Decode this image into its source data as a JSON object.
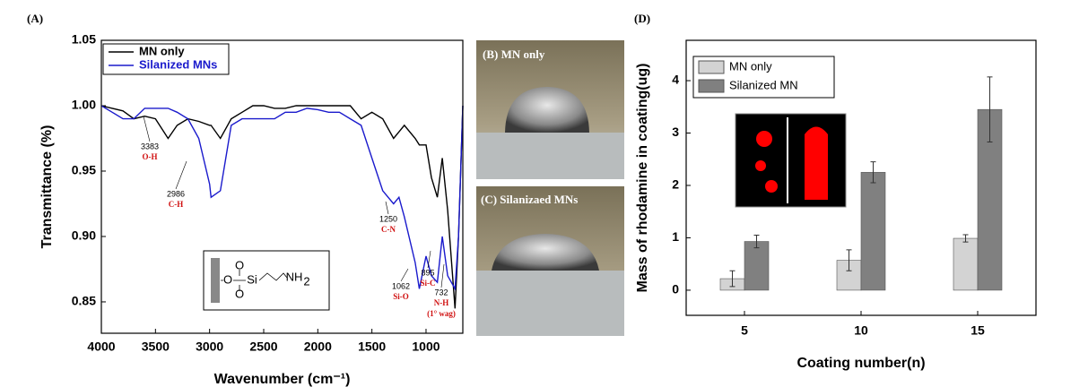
{
  "chart_data": [
    {
      "type": "line",
      "panel": "(A)",
      "xlabel": "Wavenumber (cm⁻¹)",
      "ylabel": "Transmittance (%)",
      "x": [
        4000,
        3900,
        3800,
        3700,
        3600,
        3500,
        3383,
        3300,
        3200,
        3100,
        3000,
        2986,
        2900,
        2800,
        2700,
        2600,
        2500,
        2400,
        2300,
        2200,
        2100,
        2000,
        1900,
        1800,
        1700,
        1600,
        1500,
        1400,
        1300,
        1250,
        1200,
        1100,
        1062,
        1000,
        950,
        895,
        850,
        800,
        732,
        700,
        660
      ],
      "series": [
        {
          "name": "MN only",
          "color": "#000000",
          "values": [
            1.0,
            0.998,
            0.996,
            0.99,
            0.992,
            0.99,
            0.975,
            0.985,
            0.99,
            0.988,
            0.985,
            0.985,
            0.975,
            0.99,
            0.995,
            1.0,
            1.0,
            0.998,
            0.998,
            1.0,
            1.0,
            1.0,
            1.0,
            1.0,
            1.0,
            0.99,
            0.995,
            0.99,
            0.975,
            0.98,
            0.985,
            0.975,
            0.97,
            0.97,
            0.945,
            0.93,
            0.96,
            0.92,
            0.845,
            0.9,
            1.0
          ]
        },
        {
          "name": "Silanized MNs",
          "color": "#1a1acc",
          "values": [
            1.0,
            0.995,
            0.99,
            0.99,
            0.998,
            0.998,
            0.998,
            0.995,
            0.99,
            0.975,
            0.94,
            0.93,
            0.935,
            0.985,
            0.99,
            0.99,
            0.99,
            0.99,
            0.995,
            0.995,
            0.998,
            0.997,
            0.995,
            0.995,
            0.99,
            0.985,
            0.96,
            0.935,
            0.925,
            0.93,
            0.915,
            0.88,
            0.86,
            0.885,
            0.87,
            0.865,
            0.9,
            0.87,
            0.86,
            0.9,
            1.0
          ]
        }
      ],
      "xlim": [
        4000,
        660
      ],
      "xticks": [
        4000,
        3500,
        3000,
        2500,
        2000,
        1500,
        1000
      ],
      "ylim": [
        0.826,
        1.05
      ],
      "yticks": [
        0.85,
        {
          "value": 0.9,
          "label": "0.90"
        },
        0.95,
        {
          "value": 1.0,
          "label": "1.00"
        },
        1.05
      ],
      "legend": "upper left",
      "annotations": [
        {
          "label": "3383",
          "note": "O-H"
        },
        {
          "label": "2986",
          "note": "C-H"
        },
        {
          "label": "1250",
          "note": "C-N"
        },
        {
          "label": "1062",
          "note": "Si-O"
        },
        {
          "label": "895",
          "note": "Si-C"
        },
        {
          "label": "732",
          "note": "N-H",
          "extra": "(1° wag)"
        }
      ],
      "inset": [
        "O",
        "O",
        "Si",
        "O",
        "NH",
        "2"
      ]
    },
    {
      "type": "bar",
      "panel": "(D)",
      "xlabel": "Coating number(n)",
      "ylabel": "Mass of rhodamine in coating(ug)",
      "categories": [
        "5",
        "10",
        "15"
      ],
      "series": [
        {
          "name": "MN only",
          "color": "#d3d3d3",
          "values": [
            0.22,
            0.57,
            0.99
          ],
          "errors": [
            0.15,
            0.2,
            0.07
          ]
        },
        {
          "name": "Silanized MN",
          "color": "#808080",
          "values": [
            0.93,
            2.25,
            3.45
          ],
          "errors": [
            0.12,
            0.2,
            0.62
          ]
        }
      ],
      "ylim": [
        -0.48,
        4.77
      ],
      "yticks": [
        0,
        1,
        2,
        3,
        4
      ],
      "legend": "upper left"
    }
  ],
  "photos": [
    "(B) MN only",
    "(C) Silanizaed MNs"
  ]
}
